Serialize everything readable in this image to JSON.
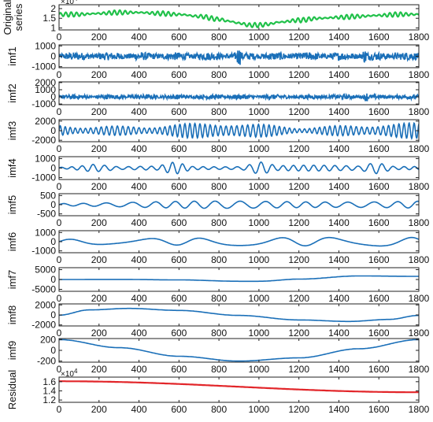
{
  "figure": {
    "x_ticks": [
      0,
      200,
      400,
      600,
      800,
      1000,
      1200,
      1400,
      1600,
      1800
    ]
  },
  "chart_data": [
    {
      "type": "line",
      "ylabel": "Original\nseries",
      "color": "#21c14a",
      "ylim": [
        0.9,
        2.2
      ],
      "yticks": [
        1,
        1.5,
        2
      ],
      "ytick_labels": [
        "1",
        "1.5",
        "2"
      ],
      "y_exponent": "×10^4",
      "xlim": [
        0,
        1800
      ],
      "x": [
        0,
        100,
        200,
        300,
        400,
        500,
        600,
        700,
        800,
        850,
        900,
        950,
        1000,
        1050,
        1100,
        1200,
        1300,
        1400,
        1500,
        1600,
        1700,
        1800
      ],
      "y": [
        1.7,
        1.7,
        1.75,
        1.8,
        1.8,
        1.75,
        1.7,
        1.6,
        1.45,
        1.35,
        1.25,
        1.15,
        1.15,
        1.2,
        1.3,
        1.4,
        1.5,
        1.55,
        1.6,
        1.65,
        1.7,
        1.7
      ],
      "oscillation_amplitude": 0.12
    },
    {
      "type": "line",
      "ylabel": "imf1",
      "color": "#1a6fb8",
      "ylim": [
        -1100,
        1100
      ],
      "yticks": [
        -1000,
        0,
        1000
      ],
      "ytick_labels": [
        "-1000",
        "0",
        "1000"
      ],
      "xlim": [
        0,
        1800
      ],
      "amplitude": 380,
      "character": "high-frequency noise",
      "bursts_at": [
        900,
        1530
      ]
    },
    {
      "type": "line",
      "ylabel": "imf2",
      "color": "#1a6fb8",
      "ylim": [
        -1100,
        2100
      ],
      "yticks": [
        -1000,
        0,
        1000,
        2000
      ],
      "ytick_labels": [
        "-1000",
        "0",
        "1000",
        "2000"
      ],
      "xlim": [
        0,
        1800
      ],
      "amplitude": 330,
      "character": "high-frequency noise",
      "bursts_at": [
        1540
      ]
    },
    {
      "type": "line",
      "ylabel": "imf3",
      "color": "#1a6fb8",
      "ylim": [
        -2300,
        2300
      ],
      "yticks": [
        -2000,
        0,
        2000
      ],
      "ytick_labels": [
        "-2000",
        "0",
        "2000"
      ],
      "xlim": [
        0,
        1800
      ],
      "amplitude": 1400,
      "period": 26
    },
    {
      "type": "line",
      "ylabel": "imf4",
      "color": "#1a6fb8",
      "ylim": [
        -1200,
        1200
      ],
      "yticks": [
        -1000,
        0,
        1000
      ],
      "ytick_labels": [
        "-1000",
        "0",
        "1000"
      ],
      "xlim": [
        0,
        1800
      ],
      "amplitude": 260,
      "period": 55,
      "bursts_at": [
        120,
        210,
        580,
        1000,
        1590
      ]
    },
    {
      "type": "line",
      "ylabel": "imf5",
      "color": "#1a6fb8",
      "ylim": [
        -600,
        600
      ],
      "yticks": [
        -500,
        0,
        500
      ],
      "ytick_labels": [
        "-500",
        "0",
        "500"
      ],
      "xlim": [
        0,
        1800
      ],
      "amplitude": 220,
      "period": 110
    },
    {
      "type": "line",
      "ylabel": "imf6",
      "color": "#1a6fb8",
      "ylim": [
        -1200,
        1200
      ],
      "yticks": [
        -1000,
        0,
        1000
      ],
      "ytick_labels": [
        "-1000",
        "0",
        "1000"
      ],
      "xlim": [
        0,
        1800
      ],
      "amplitude": 450,
      "period": 330
    },
    {
      "type": "line",
      "ylabel": "imf7",
      "color": "#1a6fb8",
      "ylim": [
        -6000,
        6000
      ],
      "yticks": [
        -5000,
        0,
        5000
      ],
      "ytick_labels": [
        "-5000",
        "0",
        "5000"
      ],
      "xlim": [
        0,
        1800
      ],
      "x": [
        0,
        300,
        600,
        900,
        1000,
        1200,
        1500,
        1800
      ],
      "y": [
        0,
        50,
        -200,
        -900,
        -900,
        200,
        1800,
        1600
      ]
    },
    {
      "type": "line",
      "ylabel": "imf8",
      "color": "#1a6fb8",
      "ylim": [
        -2200,
        2200
      ],
      "yticks": [
        -2000,
        0,
        2000
      ],
      "ytick_labels": [
        "-2000",
        "0",
        "2000"
      ],
      "xlim": [
        0,
        1800
      ],
      "x": [
        0,
        150,
        350,
        600,
        900,
        1200,
        1450,
        1650,
        1800
      ],
      "y": [
        -50,
        1000,
        1300,
        900,
        -100,
        -1000,
        -1300,
        -900,
        -100
      ]
    },
    {
      "type": "line",
      "ylabel": "imf9",
      "color": "#1a6fb8",
      "ylim": [
        -220,
        220
      ],
      "yticks": [
        -200,
        0,
        200
      ],
      "ytick_labels": [
        "-200",
        "0",
        "200"
      ],
      "xlim": [
        0,
        1800
      ],
      "x": [
        0,
        300,
        600,
        900,
        1200,
        1500,
        1800
      ],
      "y": [
        200,
        50,
        -110,
        -200,
        -140,
        30,
        200
      ]
    },
    {
      "type": "line",
      "ylabel": "Residual",
      "color": "#e2262a",
      "ylim": [
        1.15,
        1.7
      ],
      "yticks": [
        1.2,
        1.4,
        1.6
      ],
      "ytick_labels": [
        "1.2",
        "1.4",
        "1.6"
      ],
      "y_exponent": "×10^4",
      "xlim": [
        0,
        1800
      ],
      "x": [
        0,
        1800
      ],
      "y": [
        1.61,
        1.37
      ]
    }
  ]
}
